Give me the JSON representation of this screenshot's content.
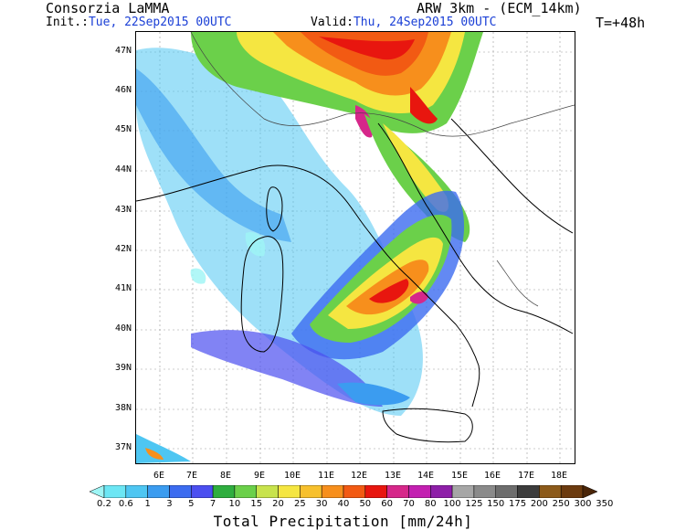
{
  "header": {
    "org": "Consorzia LaMMA",
    "model": "ARW 3km - (ECM_14km)",
    "init_label": "Init.:",
    "init_value": "Tue, 22Sep2015 00UTC",
    "valid_label": "Valid:",
    "valid_value": "Thu, 24Sep2015 00UTC",
    "lead": "T=+48h"
  },
  "axes": {
    "lat_labels": [
      "47N",
      "46N",
      "45N",
      "44N",
      "43N",
      "42N",
      "41N",
      "40N",
      "39N",
      "38N",
      "37N"
    ],
    "lon_labels": [
      "6E",
      "7E",
      "8E",
      "9E",
      "10E",
      "11E",
      "12E",
      "13E",
      "14E",
      "15E",
      "16E",
      "17E",
      "18E"
    ]
  },
  "colorbar": {
    "title": "Total Precipitation [mm/24h]",
    "labels": [
      "0.2",
      "0.6",
      "1",
      "3",
      "5",
      "7",
      "10",
      "15",
      "20",
      "25",
      "30",
      "40",
      "50",
      "60",
      "70",
      "80",
      "100",
      "125",
      "150",
      "175",
      "200",
      "250",
      "300",
      "350"
    ],
    "colors": [
      "#9ef5f5",
      "#6ce6f4",
      "#4ec6f2",
      "#3b9cf0",
      "#3c6cf0",
      "#4b4ff0",
      "#2fae3f",
      "#6bd04a",
      "#c8e34c",
      "#f5e641",
      "#f7c02d",
      "#f78f1c",
      "#f25a13",
      "#e8160f",
      "#d6278a",
      "#c31fb1",
      "#8e1fa8",
      "#a6a6a6",
      "#8a8a8a",
      "#6d6d6d",
      "#3c3c3c",
      "#8c5a1a",
      "#6c3b0f",
      "#4a2508"
    ]
  }
}
